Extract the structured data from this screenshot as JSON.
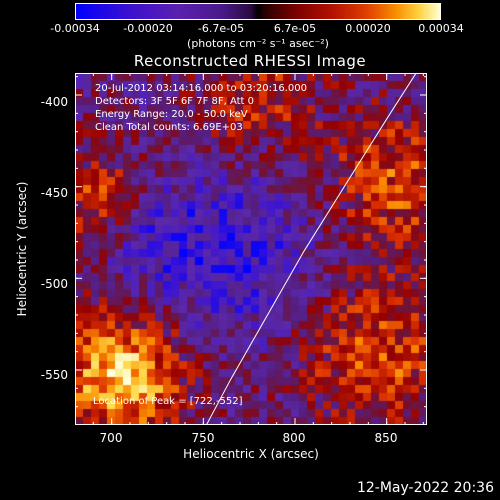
{
  "colorbar": {
    "ticks": [
      "-0.00034",
      "-0.00020",
      "-6.7e-05",
      "6.7e-05",
      "0.00020",
      "0.00034"
    ],
    "units": "(photons cm⁻² s⁻¹ asec⁻²)"
  },
  "chart_data": {
    "type": "heatmap",
    "title": "Reconstructed RHESSI Image",
    "xlabel": "Heliocentric X (arcsec)",
    "ylabel": "Heliocentric Y (arcsec)",
    "xlim": [
      680,
      872
    ],
    "ylim": [
      -580,
      -388
    ],
    "xticks": [
      "700",
      "750",
      "800",
      "850"
    ],
    "yticks": [
      "-400",
      "-450",
      "-500",
      "-550"
    ],
    "colormap": "rhessi-color",
    "color_range": [
      -0.00034,
      0.00034
    ],
    "limb_curve": [
      [
        749,
        -585
      ],
      [
        765,
        -555
      ],
      [
        785,
        -520
      ],
      [
        805,
        -485
      ],
      [
        830,
        -445
      ],
      [
        852,
        -410
      ],
      [
        868,
        -385
      ]
    ],
    "annotations": {
      "time_range": "20-Jul-2012 03:14:16.000 to 03:20:16.000",
      "detectors": "Detectors: 3F 5F 6F 7F 8F, Att 0",
      "energy_range": "Energy Range: 20.0 - 50.0 keV",
      "clean_counts": "Clean     Total counts: 6.69E+03",
      "peak": "Location of Peak = [722,-552]"
    },
    "peak": {
      "x": 722,
      "y": -552
    }
  },
  "timestamp": "12-May-2022 20:36"
}
